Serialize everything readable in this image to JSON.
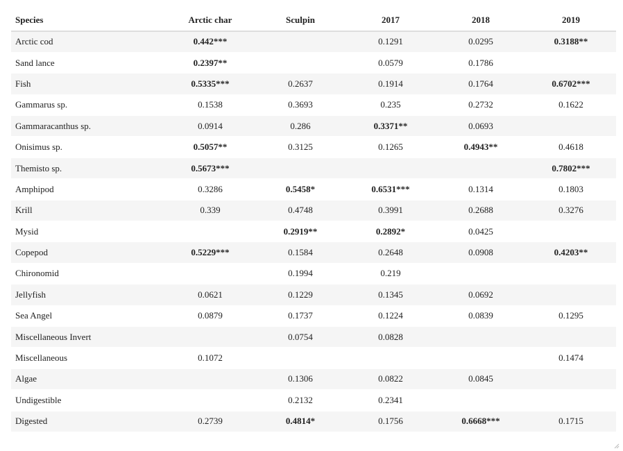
{
  "table": {
    "columns": [
      "Species",
      "Arctic char",
      "Sculpin",
      "2017",
      "2018",
      "2019"
    ],
    "rows": [
      {
        "species": "Arctic cod",
        "cells": [
          {
            "v": "0.442***",
            "b": true
          },
          {
            "v": "",
            "b": false
          },
          {
            "v": "0.1291",
            "b": false
          },
          {
            "v": "0.0295",
            "b": false
          },
          {
            "v": "0.3188**",
            "b": true
          }
        ]
      },
      {
        "species": "Sand lance",
        "cells": [
          {
            "v": "0.2397**",
            "b": true
          },
          {
            "v": "",
            "b": false
          },
          {
            "v": "0.0579",
            "b": false
          },
          {
            "v": "0.1786",
            "b": false
          },
          {
            "v": "",
            "b": false
          }
        ]
      },
      {
        "species": "Fish",
        "cells": [
          {
            "v": "0.5335***",
            "b": true
          },
          {
            "v": "0.2637",
            "b": false
          },
          {
            "v": "0.1914",
            "b": false
          },
          {
            "v": "0.1764",
            "b": false
          },
          {
            "v": "0.6702***",
            "b": true
          }
        ]
      },
      {
        "species": "Gammarus sp.",
        "cells": [
          {
            "v": "0.1538",
            "b": false
          },
          {
            "v": "0.3693",
            "b": false
          },
          {
            "v": "0.235",
            "b": false
          },
          {
            "v": "0.2732",
            "b": false
          },
          {
            "v": "0.1622",
            "b": false
          }
        ]
      },
      {
        "species": "Gammaracanthus sp.",
        "cells": [
          {
            "v": "0.0914",
            "b": false
          },
          {
            "v": "0.286",
            "b": false
          },
          {
            "v": "0.3371**",
            "b": true
          },
          {
            "v": "0.0693",
            "b": false
          },
          {
            "v": "",
            "b": false
          }
        ]
      },
      {
        "species": "Onisimus sp.",
        "cells": [
          {
            "v": "0.5057**",
            "b": true
          },
          {
            "v": "0.3125",
            "b": false
          },
          {
            "v": "0.1265",
            "b": false
          },
          {
            "v": "0.4943**",
            "b": true
          },
          {
            "v": "0.4618",
            "b": false
          }
        ]
      },
      {
        "species": "Themisto sp.",
        "cells": [
          {
            "v": "0.5673***",
            "b": true
          },
          {
            "v": "",
            "b": false
          },
          {
            "v": "",
            "b": false
          },
          {
            "v": "",
            "b": false
          },
          {
            "v": "0.7802***",
            "b": true
          }
        ]
      },
      {
        "species": "Amphipod",
        "cells": [
          {
            "v": "0.3286",
            "b": false
          },
          {
            "v": "0.5458*",
            "b": true
          },
          {
            "v": "0.6531***",
            "b": true
          },
          {
            "v": "0.1314",
            "b": false
          },
          {
            "v": "0.1803",
            "b": false
          }
        ]
      },
      {
        "species": "Krill",
        "cells": [
          {
            "v": "0.339",
            "b": false
          },
          {
            "v": "0.4748",
            "b": false
          },
          {
            "v": "0.3991",
            "b": false
          },
          {
            "v": "0.2688",
            "b": false
          },
          {
            "v": "0.3276",
            "b": false
          }
        ]
      },
      {
        "species": "Mysid",
        "cells": [
          {
            "v": "",
            "b": false
          },
          {
            "v": "0.2919**",
            "b": true
          },
          {
            "v": "0.2892*",
            "b": true
          },
          {
            "v": "0.0425",
            "b": false
          },
          {
            "v": "",
            "b": false
          }
        ]
      },
      {
        "species": "Copepod",
        "cells": [
          {
            "v": "0.5229***",
            "b": true
          },
          {
            "v": "0.1584",
            "b": false
          },
          {
            "v": "0.2648",
            "b": false
          },
          {
            "v": "0.0908",
            "b": false
          },
          {
            "v": "0.4203**",
            "b": true
          }
        ]
      },
      {
        "species": "Chironomid",
        "cells": [
          {
            "v": "",
            "b": false
          },
          {
            "v": "0.1994",
            "b": false
          },
          {
            "v": "0.219",
            "b": false
          },
          {
            "v": "",
            "b": false
          },
          {
            "v": "",
            "b": false
          }
        ]
      },
      {
        "species": "Jellyfish",
        "cells": [
          {
            "v": "0.0621",
            "b": false
          },
          {
            "v": "0.1229",
            "b": false
          },
          {
            "v": "0.1345",
            "b": false
          },
          {
            "v": "0.0692",
            "b": false
          },
          {
            "v": "",
            "b": false
          }
        ]
      },
      {
        "species": "Sea Angel",
        "cells": [
          {
            "v": "0.0879",
            "b": false
          },
          {
            "v": "0.1737",
            "b": false
          },
          {
            "v": "0.1224",
            "b": false
          },
          {
            "v": "0.0839",
            "b": false
          },
          {
            "v": "0.1295",
            "b": false
          }
        ]
      },
      {
        "species": "Miscellaneous Invert",
        "cells": [
          {
            "v": "",
            "b": false
          },
          {
            "v": "0.0754",
            "b": false
          },
          {
            "v": "0.0828",
            "b": false
          },
          {
            "v": "",
            "b": false
          },
          {
            "v": "",
            "b": false
          }
        ]
      },
      {
        "species": "Miscellaneous",
        "cells": [
          {
            "v": "0.1072",
            "b": false
          },
          {
            "v": "",
            "b": false
          },
          {
            "v": "",
            "b": false
          },
          {
            "v": "",
            "b": false
          },
          {
            "v": "0.1474",
            "b": false
          }
        ]
      },
      {
        "species": "Algae",
        "cells": [
          {
            "v": "",
            "b": false
          },
          {
            "v": "0.1306",
            "b": false
          },
          {
            "v": "0.0822",
            "b": false
          },
          {
            "v": "0.0845",
            "b": false
          },
          {
            "v": "",
            "b": false
          }
        ]
      },
      {
        "species": "Undigestible",
        "cells": [
          {
            "v": "",
            "b": false
          },
          {
            "v": "0.2132",
            "b": false
          },
          {
            "v": "0.2341",
            "b": false
          },
          {
            "v": "",
            "b": false
          },
          {
            "v": "",
            "b": false
          }
        ]
      },
      {
        "species": "Digested",
        "cells": [
          {
            "v": "0.2739",
            "b": false
          },
          {
            "v": "0.4814*",
            "b": true
          },
          {
            "v": "0.1756",
            "b": false
          },
          {
            "v": "0.6668***",
            "b": true
          },
          {
            "v": "0.1715",
            "b": false
          }
        ]
      }
    ]
  },
  "icons": {
    "resize_handle": "resize-grip-icon"
  },
  "colors": {
    "row_stripe": "#f5f5f5",
    "header_rule": "#dddddd",
    "text": "#222222"
  }
}
